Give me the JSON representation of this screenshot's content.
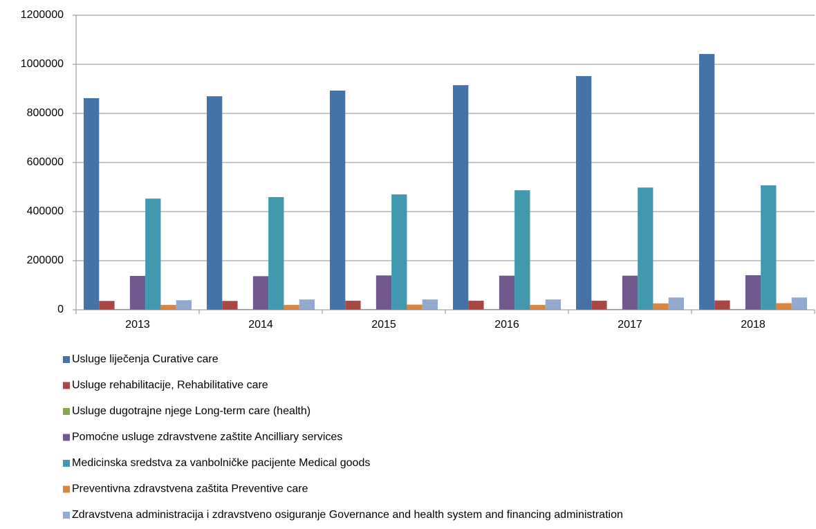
{
  "chart_data": {
    "type": "bar",
    "categories": [
      "2013",
      "2014",
      "2015",
      "2016",
      "2017",
      "2018"
    ],
    "series": [
      {
        "name": "Usluge liječenja Curative care",
        "color": "#4572a7",
        "values": [
          862000,
          870000,
          893000,
          915000,
          952000,
          1042000
        ]
      },
      {
        "name": "Usluge rehabilitacije, Rehabilitative care",
        "color": "#aa4643",
        "values": [
          36000,
          36000,
          37000,
          37000,
          37000,
          38000
        ]
      },
      {
        "name": "Usluge dugotrajne njege Long-term care (health)",
        "color": "#89a54e",
        "values": [
          3000,
          3000,
          3000,
          3000,
          3000,
          3000
        ]
      },
      {
        "name": "Pomoćne usluge zdravstvene zaštite Ancilliary services",
        "color": "#71588f",
        "values": [
          138000,
          137000,
          140000,
          139000,
          139000,
          141000
        ]
      },
      {
        "name": "Medicinska sredstva za vanbolničke pacijente Medical goods",
        "color": "#4198af",
        "values": [
          453000,
          459000,
          470000,
          487000,
          498000,
          507000
        ]
      },
      {
        "name": "Preventivna zdravstvena zaštita Preventive care",
        "color": "#db843d",
        "values": [
          20000,
          20000,
          21000,
          20000,
          26000,
          27000
        ]
      },
      {
        "name": "Zdravstvena administracija i zdravstveno osiguranje Governance and health system and financing administration",
        "color": "#93a9cf",
        "values": [
          39000,
          42000,
          42000,
          42000,
          50000,
          50000
        ]
      }
    ],
    "ylim": [
      0,
      1200000
    ],
    "yticks": [
      0,
      200000,
      400000,
      600000,
      800000,
      1000000,
      1200000
    ],
    "grid": true,
    "legend": "bottom"
  }
}
